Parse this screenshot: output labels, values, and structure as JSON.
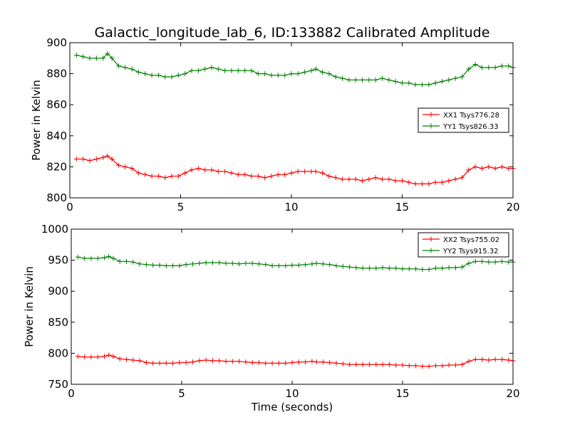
{
  "figure": {
    "title": "Galactic_longitude_lab_6, ID:133882 Calibrated Amplitude"
  },
  "colors": {
    "red": "#ff0000",
    "green": "#008000",
    "axis": "#000000"
  },
  "chart_data": [
    {
      "type": "line",
      "title": "Galactic_longitude_lab_6, ID:133882 Calibrated Amplitude",
      "xlabel": "",
      "ylabel": "Power in Kelvin",
      "xlim": [
        0,
        20
      ],
      "ylim": [
        800,
        900
      ],
      "xticks": [
        0,
        5,
        10,
        15,
        20
      ],
      "yticks": [
        800,
        820,
        840,
        860,
        880,
        900
      ],
      "grid": false,
      "legend": "center-right",
      "x": [
        0.3,
        0.6,
        0.9,
        1.2,
        1.5,
        1.7,
        1.9,
        2.2,
        2.5,
        2.8,
        3.1,
        3.4,
        3.7,
        4.0,
        4.3,
        4.6,
        4.9,
        5.2,
        5.5,
        5.8,
        6.1,
        6.4,
        6.7,
        7.0,
        7.3,
        7.6,
        7.9,
        8.2,
        8.5,
        8.8,
        9.1,
        9.4,
        9.7,
        10.0,
        10.3,
        10.6,
        10.9,
        11.1,
        11.4,
        11.7,
        12.0,
        12.3,
        12.6,
        12.9,
        13.2,
        13.5,
        13.8,
        14.1,
        14.4,
        14.7,
        15.0,
        15.3,
        15.6,
        15.9,
        16.2,
        16.5,
        16.8,
        17.1,
        17.4,
        17.7,
        18.0,
        18.3,
        18.6,
        18.9,
        19.2,
        19.5,
        19.8,
        20.0
      ],
      "series": [
        {
          "name": "XX1 Tsys776.28",
          "color": "#ff0000",
          "values": [
            825,
            825,
            824,
            825,
            826,
            827,
            825,
            821,
            820,
            819,
            816,
            815,
            814,
            814,
            813,
            814,
            814,
            816,
            818,
            819,
            818,
            818,
            817,
            817,
            816,
            815,
            815,
            814,
            814,
            813,
            814,
            815,
            815,
            816,
            817,
            817,
            817,
            817,
            816,
            814,
            813,
            812,
            812,
            812,
            811,
            812,
            813,
            812,
            812,
            811,
            811,
            810,
            809,
            809,
            809,
            810,
            810,
            811,
            812,
            813,
            818,
            820,
            819,
            820,
            819,
            820,
            819,
            819
          ],
          "marker": "+"
        },
        {
          "name": "YY1 Tsys826.33",
          "color": "#008000",
          "values": [
            892,
            891,
            890,
            890,
            890,
            893,
            890,
            885,
            884,
            883,
            881,
            880,
            879,
            879,
            878,
            878,
            879,
            880,
            882,
            882,
            883,
            884,
            883,
            882,
            882,
            882,
            882,
            882,
            880,
            880,
            879,
            879,
            879,
            880,
            880,
            881,
            882,
            883,
            881,
            880,
            878,
            877,
            876,
            876,
            876,
            876,
            876,
            877,
            876,
            875,
            874,
            874,
            873,
            873,
            873,
            874,
            875,
            876,
            877,
            878,
            883,
            886,
            884,
            884,
            884,
            885,
            885,
            884
          ],
          "marker": "+"
        }
      ]
    },
    {
      "type": "line",
      "title": "",
      "xlabel": "Time (seconds)",
      "ylabel": "Power in Kelvin",
      "xlim": [
        0,
        20
      ],
      "ylim": [
        750,
        1000
      ],
      "xticks": [
        0,
        5,
        10,
        15,
        20
      ],
      "yticks": [
        750,
        800,
        850,
        900,
        950,
        1000
      ],
      "grid": false,
      "legend": "top-right",
      "x": [
        0.3,
        0.6,
        0.9,
        1.2,
        1.5,
        1.7,
        1.9,
        2.2,
        2.5,
        2.8,
        3.1,
        3.4,
        3.7,
        4.0,
        4.3,
        4.6,
        4.9,
        5.2,
        5.5,
        5.8,
        6.1,
        6.4,
        6.7,
        7.0,
        7.3,
        7.6,
        7.9,
        8.2,
        8.5,
        8.8,
        9.1,
        9.4,
        9.7,
        10.0,
        10.3,
        10.6,
        10.9,
        11.1,
        11.4,
        11.7,
        12.0,
        12.3,
        12.6,
        12.9,
        13.2,
        13.5,
        13.8,
        14.1,
        14.4,
        14.7,
        15.0,
        15.3,
        15.6,
        15.9,
        16.2,
        16.5,
        16.8,
        17.1,
        17.4,
        17.7,
        18.0,
        18.3,
        18.6,
        18.9,
        19.2,
        19.5,
        19.8,
        20.0
      ],
      "series": [
        {
          "name": "XX2 Tsys755.02",
          "color": "#ff0000",
          "values": [
            795,
            794,
            794,
            794,
            795,
            797,
            795,
            791,
            790,
            789,
            788,
            785,
            784,
            784,
            784,
            784,
            785,
            785,
            786,
            788,
            789,
            788,
            788,
            787,
            787,
            787,
            786,
            785,
            785,
            784,
            784,
            784,
            784,
            785,
            786,
            786,
            787,
            786,
            786,
            785,
            784,
            783,
            782,
            782,
            782,
            782,
            782,
            782,
            782,
            781,
            781,
            780,
            780,
            779,
            779,
            780,
            780,
            781,
            781,
            782,
            787,
            790,
            790,
            789,
            790,
            790,
            789,
            788
          ],
          "marker": "+"
        },
        {
          "name": "YY2 Tsys915.32",
          "color": "#008000",
          "values": [
            955,
            953,
            953,
            953,
            954,
            956,
            953,
            948,
            948,
            947,
            944,
            943,
            942,
            942,
            941,
            941,
            941,
            943,
            944,
            945,
            946,
            946,
            946,
            945,
            945,
            944,
            945,
            945,
            944,
            943,
            941,
            941,
            941,
            942,
            942,
            943,
            944,
            945,
            944,
            943,
            941,
            940,
            939,
            938,
            937,
            937,
            937,
            938,
            937,
            937,
            936,
            936,
            936,
            935,
            935,
            937,
            937,
            938,
            938,
            939,
            945,
            948,
            948,
            947,
            947,
            948,
            947,
            947
          ],
          "marker": "+"
        }
      ]
    }
  ]
}
